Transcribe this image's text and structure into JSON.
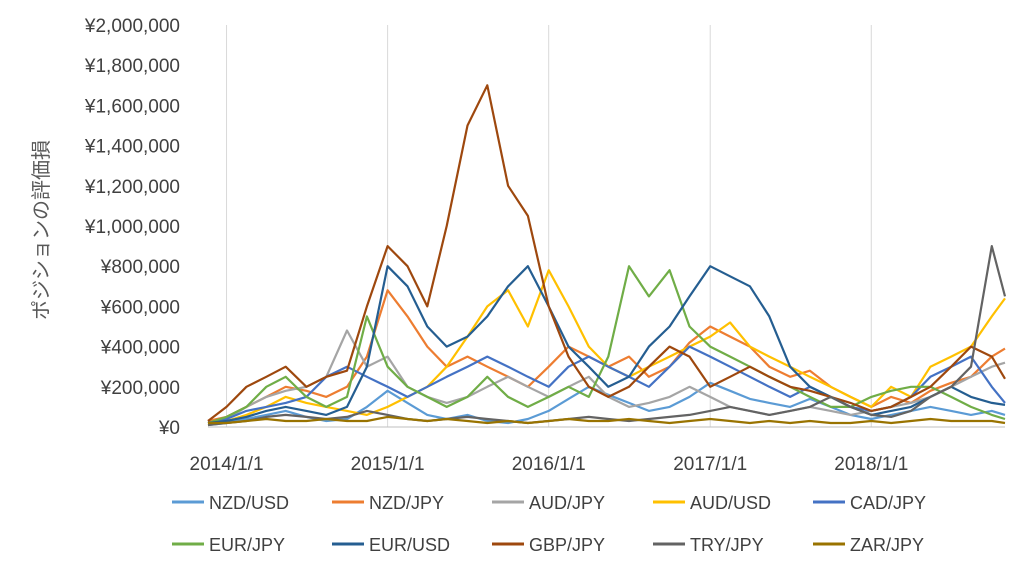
{
  "chart_data": {
    "type": "line",
    "title": "",
    "xlabel": "",
    "ylabel": "ポジションの評価損",
    "x_ticks": [
      "2014/1/1",
      "2015/1/1",
      "2016/1/1",
      "2017/1/1",
      "2018/1/1"
    ],
    "xlim": [
      "2013/11/20",
      "2018/10/31"
    ],
    "ylim": [
      0,
      2000000
    ],
    "y_ticks": [
      "¥0",
      "¥200,000",
      "¥400,000",
      "¥600,000",
      "¥800,000",
      "¥1,000,000",
      "¥1,200,000",
      "¥1,400,000",
      "¥1,600,000",
      "¥1,800,000",
      "¥2,000,000"
    ],
    "grid": "vertical",
    "legend_position": "bottom",
    "x_dates": [
      "2013/11/20",
      "2014/01/01",
      "2014/02/15",
      "2014/04/01",
      "2014/05/15",
      "2014/07/01",
      "2014/08/15",
      "2014/10/01",
      "2014/11/15",
      "2015/01/01",
      "2015/02/15",
      "2015/04/01",
      "2015/05/15",
      "2015/07/01",
      "2015/08/15",
      "2015/10/01",
      "2015/11/15",
      "2016/01/01",
      "2016/02/15",
      "2016/04/01",
      "2016/05/15",
      "2016/07/01",
      "2016/08/15",
      "2016/10/01",
      "2016/11/15",
      "2017/01/01",
      "2017/02/15",
      "2017/04/01",
      "2017/05/15",
      "2017/07/01",
      "2017/08/15",
      "2017/10/01",
      "2017/11/15",
      "2018/01/01",
      "2018/02/15",
      "2018/04/01",
      "2018/05/15",
      "2018/07/01",
      "2018/08/15",
      "2018/10/01",
      "2018/10/31"
    ],
    "series": [
      {
        "name": "NZD/USD",
        "color": "#5B9BD5",
        "values": [
          10000,
          20000,
          40000,
          60000,
          80000,
          50000,
          30000,
          40000,
          100000,
          180000,
          120000,
          60000,
          40000,
          60000,
          30000,
          20000,
          40000,
          80000,
          140000,
          200000,
          160000,
          120000,
          80000,
          100000,
          150000,
          220000,
          180000,
          140000,
          120000,
          100000,
          140000,
          100000,
          60000,
          40000,
          60000,
          80000,
          100000,
          80000,
          60000,
          80000,
          60000
        ]
      },
      {
        "name": "NZD/JPY",
        "color": "#ED7D31",
        "values": [
          30000,
          50000,
          100000,
          150000,
          200000,
          180000,
          150000,
          200000,
          350000,
          680000,
          550000,
          400000,
          300000,
          350000,
          300000,
          250000,
          200000,
          300000,
          400000,
          350000,
          300000,
          350000,
          250000,
          300000,
          420000,
          500000,
          450000,
          400000,
          300000,
          250000,
          280000,
          200000,
          150000,
          100000,
          150000,
          120000,
          180000,
          220000,
          250000,
          350000,
          390000
        ]
      },
      {
        "name": "AUD/JPY",
        "color": "#A5A5A5",
        "values": [
          20000,
          40000,
          100000,
          150000,
          180000,
          200000,
          250000,
          480000,
          300000,
          350000,
          200000,
          150000,
          120000,
          150000,
          200000,
          250000,
          200000,
          150000,
          200000,
          250000,
          150000,
          100000,
          120000,
          150000,
          200000,
          150000,
          100000,
          80000,
          60000,
          80000,
          100000,
          80000,
          60000,
          80000,
          100000,
          120000,
          150000,
          200000,
          250000,
          300000,
          320000
        ]
      },
      {
        "name": "AUD/USD",
        "color": "#FFC000",
        "values": [
          10000,
          30000,
          60000,
          100000,
          150000,
          120000,
          100000,
          80000,
          60000,
          100000,
          150000,
          200000,
          300000,
          450000,
          600000,
          680000,
          500000,
          780000,
          600000,
          400000,
          300000,
          250000,
          300000,
          350000,
          400000,
          450000,
          520000,
          400000,
          350000,
          300000,
          250000,
          200000,
          150000,
          100000,
          200000,
          150000,
          300000,
          350000,
          400000,
          550000,
          640000
        ]
      },
      {
        "name": "CAD/JPY",
        "color": "#4472C4",
        "values": [
          20000,
          40000,
          80000,
          100000,
          120000,
          150000,
          250000,
          300000,
          250000,
          200000,
          150000,
          200000,
          250000,
          300000,
          350000,
          300000,
          250000,
          200000,
          300000,
          350000,
          300000,
          250000,
          200000,
          300000,
          400000,
          350000,
          300000,
          250000,
          200000,
          150000,
          200000,
          150000,
          100000,
          80000,
          100000,
          150000,
          250000,
          300000,
          350000,
          200000,
          120000
        ]
      },
      {
        "name": "EUR/JPY",
        "color": "#70AD47",
        "values": [
          20000,
          50000,
          100000,
          200000,
          250000,
          150000,
          100000,
          150000,
          550000,
          300000,
          200000,
          150000,
          100000,
          150000,
          250000,
          150000,
          100000,
          150000,
          200000,
          150000,
          350000,
          800000,
          650000,
          780000,
          500000,
          400000,
          350000,
          300000,
          250000,
          200000,
          150000,
          100000,
          100000,
          150000,
          180000,
          200000,
          200000,
          150000,
          100000,
          60000,
          40000
        ]
      },
      {
        "name": "EUR/USD",
        "color": "#255E91",
        "values": [
          20000,
          30000,
          50000,
          80000,
          100000,
          80000,
          60000,
          100000,
          300000,
          800000,
          700000,
          500000,
          400000,
          450000,
          550000,
          700000,
          800000,
          600000,
          400000,
          300000,
          200000,
          250000,
          400000,
          500000,
          650000,
          800000,
          750000,
          700000,
          550000,
          300000,
          200000,
          150000,
          100000,
          60000,
          80000,
          100000,
          150000,
          200000,
          150000,
          120000,
          110000
        ]
      },
      {
        "name": "GBP/JPY",
        "color": "#9E480E",
        "values": [
          30000,
          100000,
          200000,
          250000,
          300000,
          200000,
          250000,
          280000,
          600000,
          900000,
          800000,
          600000,
          1000000,
          1500000,
          1700000,
          1200000,
          1050000,
          600000,
          350000,
          200000,
          150000,
          200000,
          300000,
          400000,
          350000,
          200000,
          250000,
          300000,
          250000,
          200000,
          180000,
          150000,
          120000,
          80000,
          100000,
          150000,
          200000,
          300000,
          400000,
          350000,
          240000
        ]
      },
      {
        "name": "TRY/JPY",
        "color": "#636363",
        "values": [
          10000,
          20000,
          30000,
          50000,
          60000,
          50000,
          40000,
          50000,
          80000,
          60000,
          40000,
          30000,
          40000,
          50000,
          40000,
          30000,
          20000,
          30000,
          40000,
          50000,
          40000,
          30000,
          40000,
          50000,
          60000,
          80000,
          100000,
          80000,
          60000,
          80000,
          100000,
          150000,
          100000,
          60000,
          50000,
          80000,
          150000,
          200000,
          300000,
          900000,
          650000
        ]
      },
      {
        "name": "ZAR/JPY",
        "color": "#997300",
        "values": [
          20000,
          20000,
          30000,
          40000,
          30000,
          30000,
          40000,
          30000,
          30000,
          50000,
          40000,
          30000,
          40000,
          30000,
          20000,
          30000,
          20000,
          30000,
          40000,
          30000,
          30000,
          40000,
          30000,
          20000,
          30000,
          40000,
          30000,
          20000,
          30000,
          20000,
          30000,
          20000,
          20000,
          30000,
          20000,
          30000,
          40000,
          30000,
          30000,
          30000,
          20000
        ]
      }
    ]
  }
}
